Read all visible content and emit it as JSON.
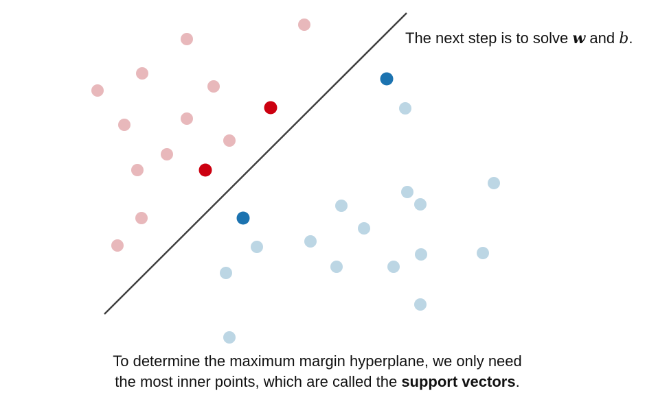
{
  "note": {
    "prefix": "The next step is to solve ",
    "var_w": "w",
    "middle": " and ",
    "var_b": "b",
    "suffix": "."
  },
  "caption": {
    "line1": "To determine the maximum margin hyperplane, we only need",
    "line2_prefix": "the most inner points, which are called the ",
    "line2_bold": "support vectors",
    "line2_suffix": "."
  },
  "colors": {
    "class_a": "#e8b8bb",
    "class_b": "#bcd6e4",
    "support_a": "#cc0010",
    "support_b": "#1c73b0",
    "hyperplane": "#404040"
  }
}
